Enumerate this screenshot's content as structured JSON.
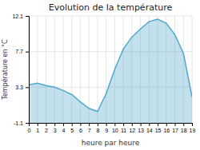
{
  "chart_data": {
    "type": "area",
    "title": "Evolution de la température",
    "x_label": "heure par heure",
    "y_label": "Température en °C",
    "color": "#50a8cc",
    "x": [
      0,
      1,
      2,
      3,
      4,
      5,
      6,
      7,
      8,
      9,
      10,
      11,
      12,
      13,
      14,
      15,
      16,
      17,
      18,
      19
    ],
    "values": [
      3.6,
      3.8,
      3.5,
      3.3,
      2.9,
      2.4,
      1.5,
      0.7,
      0.3,
      2.5,
      5.5,
      8.0,
      9.5,
      10.5,
      11.4,
      11.7,
      11.2,
      9.8,
      7.5,
      2.1
    ],
    "xlim": [
      0,
      19
    ],
    "xticks": [
      0,
      1,
      2,
      3,
      4,
      5,
      6,
      7,
      8,
      9,
      10,
      11,
      12,
      13,
      14,
      15,
      16,
      17,
      18,
      19
    ],
    "ylim": [
      -1.1,
      12.1
    ],
    "yticks": [
      -1.1,
      3.3,
      7.7,
      12.1
    ],
    "grid": true
  }
}
